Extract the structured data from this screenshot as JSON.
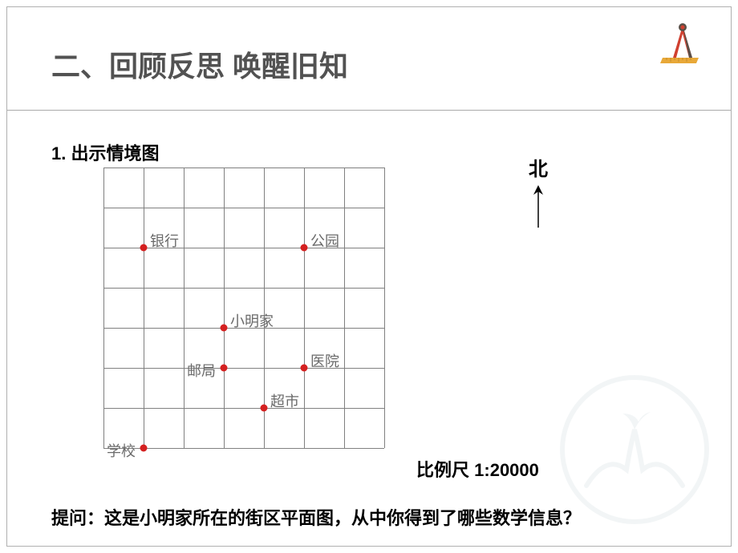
{
  "title": "二、回顾反思 唤醒旧知",
  "subtitle_num": "1.",
  "subtitle": "出示情境图",
  "compass_north": "北",
  "scale_label": "比例尺",
  "scale_value": "1:20000",
  "question": "提问：这是小明家所在的街区平面图，从中你得到了哪些数学信息？",
  "grid": {
    "rows": 7,
    "cols": 7,
    "cell_size": 50,
    "line_color": "#808080",
    "point_color": "#d42020",
    "label_color": "#6a6a6a",
    "points": [
      {
        "col": 1,
        "row": 2,
        "label": "银行",
        "label_side": "right"
      },
      {
        "col": 5,
        "row": 2,
        "label": "公园",
        "label_side": "right"
      },
      {
        "col": 3,
        "row": 4,
        "label": "小明家",
        "label_side": "right"
      },
      {
        "col": 3,
        "row": 5,
        "label": "邮局",
        "label_side": "left"
      },
      {
        "col": 5,
        "row": 5,
        "label": "医院",
        "label_side": "right"
      },
      {
        "col": 4,
        "row": 6,
        "label": "超市",
        "label_side": "right"
      },
      {
        "col": 1,
        "row": 7,
        "label": "学校",
        "label_side": "left"
      }
    ]
  },
  "arrow": {
    "shaft_length": 45,
    "color": "#000000"
  },
  "corner_icon": {
    "ruler_color": "#e8a838",
    "compass_red": "#d04030",
    "compass_dark": "#5a5048"
  },
  "watermark_color": "#6a8a9a"
}
